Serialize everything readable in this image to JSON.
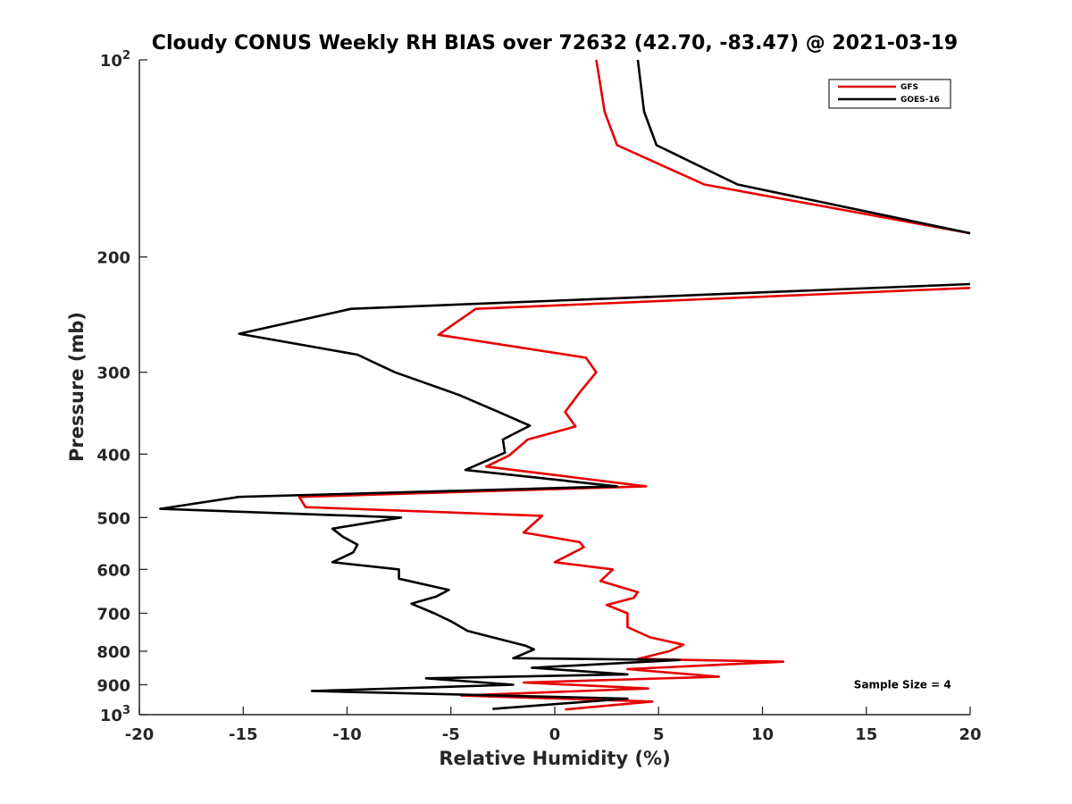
{
  "chart_data": {
    "type": "line",
    "title": "Cloudy CONUS Weekly RH BIAS over 72632 (42.70, -83.47) @ 2021-03-19",
    "xlabel": "Relative Humidity (%)",
    "ylabel": "Pressure (mb)",
    "xlim": [
      -20,
      20
    ],
    "ylim": [
      100,
      1000
    ],
    "y_scale": "log",
    "y_reversed": true,
    "grid": false,
    "legend_position": "top-right",
    "x_ticks": [
      "-20",
      "-15",
      "-10",
      "-5",
      "0",
      "5",
      "10",
      "15",
      "20"
    ],
    "x_tick_values": [
      -20,
      -15,
      -10,
      -5,
      0,
      5,
      10,
      15,
      20
    ],
    "y_ticks": [
      {
        "value": 100,
        "base": "10",
        "exp": "2"
      },
      {
        "value": 200,
        "label": "200"
      },
      {
        "value": 300,
        "label": "300"
      },
      {
        "value": 400,
        "label": "400"
      },
      {
        "value": 500,
        "label": "500"
      },
      {
        "value": 600,
        "label": "600"
      },
      {
        "value": 700,
        "label": "700"
      },
      {
        "value": 800,
        "label": "800"
      },
      {
        "value": 900,
        "label": "900"
      },
      {
        "value": 1000,
        "base": "10",
        "exp": "3"
      }
    ],
    "series": [
      {
        "name": "GFS",
        "color": "#e60000",
        "points": [
          [
            2.0,
            100
          ],
          [
            2.4,
            120
          ],
          [
            3.0,
            135
          ],
          [
            7.2,
            155
          ],
          [
            20.0,
            184
          ],
          [
            null,
            null
          ],
          [
            20.0,
            223
          ],
          [
            -3.8,
            240
          ],
          [
            -5.6,
            263
          ],
          [
            1.5,
            285
          ],
          [
            2.0,
            300
          ],
          [
            1.2,
            322
          ],
          [
            0.5,
            345
          ],
          [
            1.0,
            363
          ],
          [
            -1.3,
            380
          ],
          [
            -2.2,
            402
          ],
          [
            -3.3,
            418
          ],
          [
            4.4,
            448
          ],
          [
            -12.3,
            465
          ],
          [
            -12.0,
            482
          ],
          [
            -0.6,
            497
          ],
          [
            -1.5,
            527
          ],
          [
            1.2,
            545
          ],
          [
            1.4,
            555
          ],
          [
            0.0,
            585
          ],
          [
            2.8,
            600
          ],
          [
            2.2,
            625
          ],
          [
            4.0,
            650
          ],
          [
            3.8,
            663
          ],
          [
            2.5,
            680
          ],
          [
            3.5,
            700
          ],
          [
            3.5,
            735
          ],
          [
            4.6,
            762
          ],
          [
            6.2,
            782
          ],
          [
            5.5,
            800
          ],
          [
            4.0,
            822
          ],
          [
            11.0,
            830
          ],
          [
            3.5,
            852
          ],
          [
            7.9,
            875
          ],
          [
            -1.5,
            893
          ],
          [
            4.5,
            912
          ],
          [
            -4.5,
            935
          ],
          [
            4.7,
            955
          ],
          [
            0.5,
            982
          ]
        ]
      },
      {
        "name": "GOES-16",
        "color": "#000000",
        "points": [
          [
            4.0,
            100
          ],
          [
            4.3,
            120
          ],
          [
            4.9,
            135
          ],
          [
            8.8,
            155
          ],
          [
            20.0,
            184
          ],
          [
            null,
            null
          ],
          [
            20.0,
            220
          ],
          [
            -9.8,
            240
          ],
          [
            -15.2,
            262
          ],
          [
            -9.5,
            282
          ],
          [
            -7.7,
            300
          ],
          [
            -4.6,
            325
          ],
          [
            -2.7,
            345
          ],
          [
            -1.2,
            362
          ],
          [
            -2.5,
            380
          ],
          [
            -2.4,
            398
          ],
          [
            -4.3,
            423
          ],
          [
            3.0,
            448
          ],
          [
            -15.2,
            465
          ],
          [
            -19.0,
            485
          ],
          [
            -7.4,
            500
          ],
          [
            -10.7,
            520
          ],
          [
            -10.2,
            535
          ],
          [
            -9.5,
            550
          ],
          [
            -9.7,
            565
          ],
          [
            -10.7,
            585
          ],
          [
            -7.5,
            600
          ],
          [
            -7.5,
            620
          ],
          [
            -5.1,
            645
          ],
          [
            -5.7,
            660
          ],
          [
            -6.9,
            677
          ],
          [
            -5.8,
            700
          ],
          [
            -5.0,
            720
          ],
          [
            -4.2,
            745
          ],
          [
            -1.4,
            785
          ],
          [
            -1.0,
            795
          ],
          [
            -2.0,
            820
          ],
          [
            6.0,
            825
          ],
          [
            -1.1,
            848
          ],
          [
            3.5,
            868
          ],
          [
            -6.2,
            880
          ],
          [
            -2.0,
            900
          ],
          [
            -11.7,
            920
          ],
          [
            3.5,
            945
          ],
          [
            -3.0,
            980
          ]
        ]
      }
    ],
    "annotations": [
      {
        "text": "Sample Size = 4",
        "x": 14.4,
        "y": 900
      }
    ]
  }
}
